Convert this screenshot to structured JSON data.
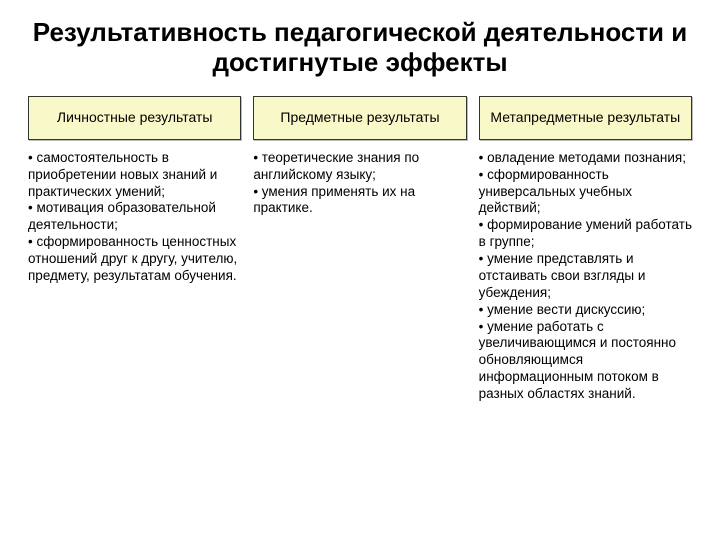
{
  "title": "Результативность педагогической деятельности и достигнутые эффекты",
  "columns": [
    {
      "header": "Личностные результаты",
      "body": "• самостоятельность в приобретении новых знаний и практических умений;\n• мотивация образовательной деятельности;\n• сформированность ценностных отношений друг к другу, учителю, предмету, результатам обучения."
    },
    {
      "header": "Предметные результаты",
      "body": "• теоретические  знания по английскому языку;\n• умения применять их на практике."
    },
    {
      "header": "Метапредметные результаты",
      "body": "• овладение методами познания;\n• сформированность универсальных учебных действий;\n• формирование умений работать в группе;\n• умение представлять и отстаивать свои взгляды и убеждения;\n• умение вести дискуссию;\n• умение работать с увеличивающимся и постоянно обновляющимся информационным потоком в разных областях знаний."
    }
  ],
  "styles": {
    "header_bg": "#f8f8c8",
    "header_border": "#333333",
    "background": "#ffffff",
    "title_fontsize": 26,
    "header_fontsize": 14,
    "body_fontsize": 13.5
  }
}
